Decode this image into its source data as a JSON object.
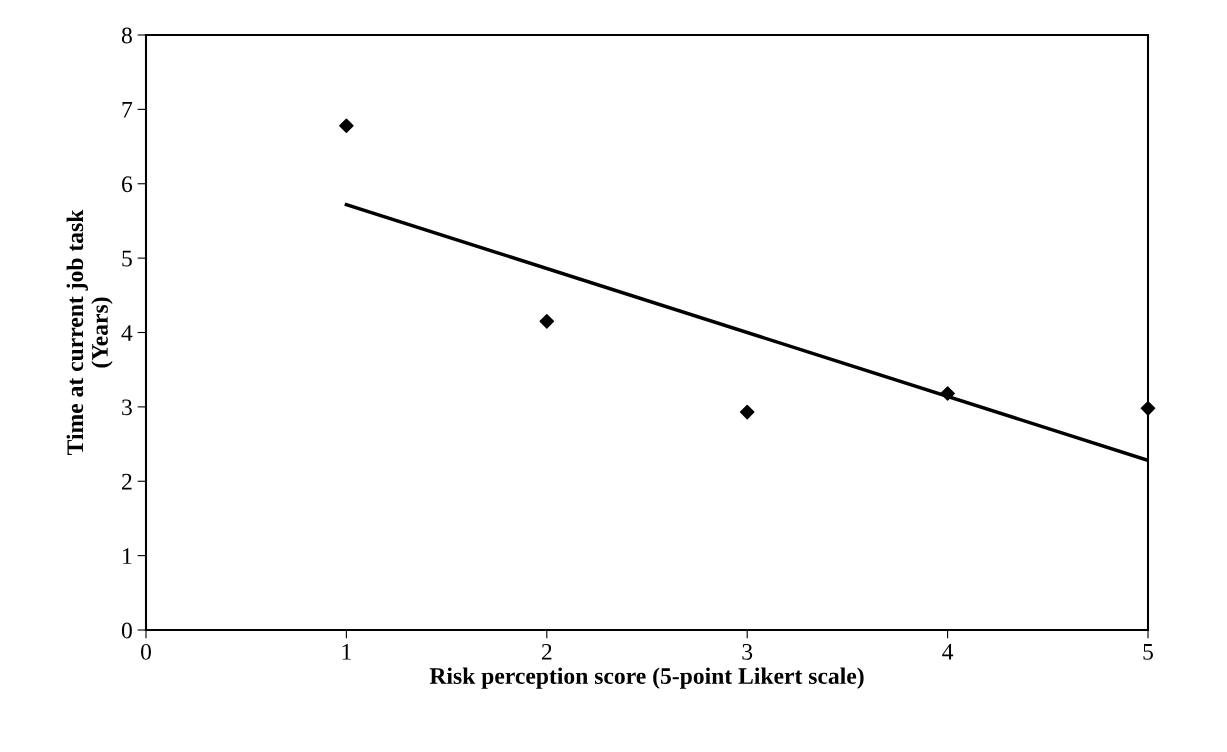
{
  "chart_data": {
    "type": "scatter",
    "xlabel": "Risk perception score (5-point Likert scale)",
    "ylabel": "Time at current job task\n(Years)",
    "x": [
      1,
      2,
      3,
      4,
      5
    ],
    "series": [
      {
        "color": "#000000",
        "values": [
          6.78,
          4.15,
          2.93,
          3.18,
          2.98
        ],
        "marker": "diamond"
      },
      {
        "type": "line",
        "color": "#000000",
        "x": [
          1,
          5
        ],
        "values": [
          5.72,
          2.28
        ],
        "marker": "none",
        "line_style": "solid"
      }
    ],
    "xlim": [
      0,
      5
    ],
    "ylim": [
      0,
      8
    ],
    "xticks": [
      0,
      1,
      2,
      3,
      4,
      5
    ],
    "yticks": [
      0,
      1,
      2,
      3,
      4,
      5,
      6,
      7,
      8
    ],
    "grid": false,
    "legend": false
  }
}
